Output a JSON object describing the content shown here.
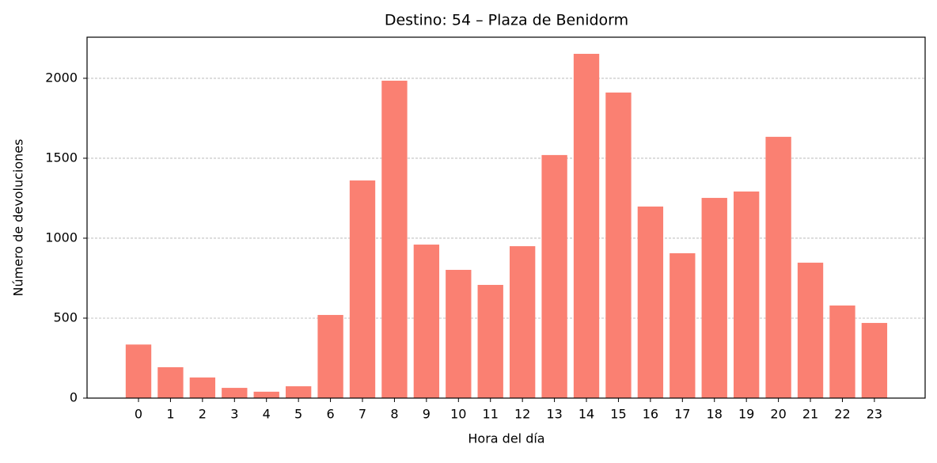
{
  "chart_data": {
    "type": "bar",
    "title": "Destino: 54 – Plaza de Benidorm",
    "x_label": "Hora del día",
    "y_label": "Número de devoluciones",
    "categories": [
      "0",
      "1",
      "2",
      "3",
      "4",
      "5",
      "6",
      "7",
      "8",
      "9",
      "10",
      "11",
      "12",
      "13",
      "14",
      "15",
      "16",
      "17",
      "18",
      "19",
      "20",
      "21",
      "22",
      "23"
    ],
    "values": [
      335,
      193,
      129,
      64,
      40,
      74,
      520,
      1361,
      1985,
      960,
      802,
      708,
      950,
      1520,
      2153,
      1911,
      1198,
      906,
      1252,
      1292,
      1634,
      847,
      579,
      470
    ],
    "color": "#fa8072",
    "ylim": [
      0,
      2257
    ],
    "yticks": [
      0,
      500,
      1000,
      1500,
      2000
    ],
    "grid": true
  }
}
